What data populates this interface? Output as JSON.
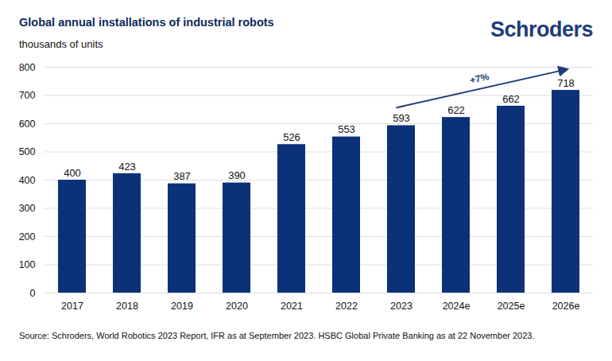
{
  "chart_data": {
    "type": "bar",
    "title": "Global annual installations of industrial robots",
    "subtitle": "thousands of units",
    "logo": "Schroders",
    "source": "Source: Schroders, World Robotics 2023 Report, IFR as at September 2023. HSBC Global Private Banking as at 22 November 2023.",
    "categories": [
      "2017",
      "2018",
      "2019",
      "2020",
      "2021",
      "2022",
      "2023",
      "2024e",
      "2025e",
      "2026e"
    ],
    "values": [
      400,
      423,
      387,
      390,
      526,
      553,
      593,
      622,
      662,
      718
    ],
    "color": "#0b3179",
    "ylim": [
      0,
      800
    ],
    "yticks": [
      0,
      100,
      200,
      300,
      400,
      500,
      600,
      700,
      800
    ],
    "grid": true,
    "data_labels": true,
    "annotations": [
      {
        "text": "+7%",
        "from": "2023",
        "to": "2026e"
      }
    ]
  }
}
